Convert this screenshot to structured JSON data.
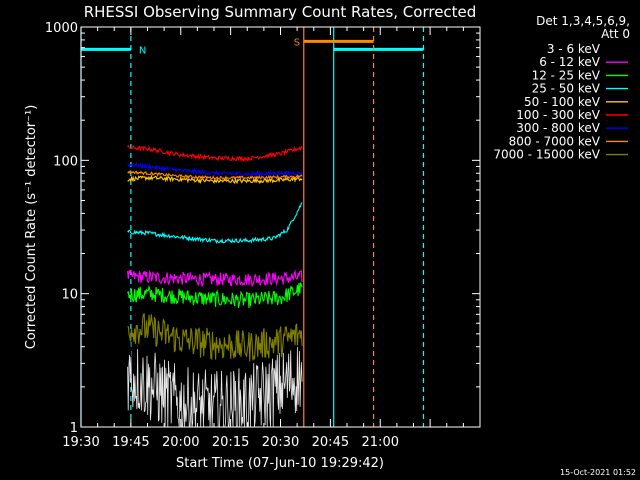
{
  "chart_data": {
    "type": "line",
    "title": "RHESSI Observing Summary Count Rates, Corrected",
    "xlabel": "Start Time (07-Jun-10 19:29:42)",
    "ylabel": "Corrected Count Rate (s⁻¹ detector⁻¹)",
    "footer": "15-Oct-2021 01:52",
    "x_unit": "minutes after 19:30 UT, 07-Jun-10",
    "xlim": [
      0,
      120
    ],
    "ylim": [
      1,
      1000
    ],
    "yscale": "log",
    "x_ticks": [
      {
        "v": 0,
        "label": "19:30"
      },
      {
        "v": 15,
        "label": "19:45"
      },
      {
        "v": 30,
        "label": "20:00"
      },
      {
        "v": 45,
        "label": "20:15"
      },
      {
        "v": 60,
        "label": "20:30"
      },
      {
        "v": 75,
        "label": "20:45"
      },
      {
        "v": 90,
        "label": "21:00"
      },
      {
        "v": 105,
        "label": ""
      }
    ],
    "y_ticks": [
      {
        "v": 1,
        "label": "1"
      },
      {
        "v": 10,
        "label": "10"
      },
      {
        "v": 100,
        "label": "100"
      },
      {
        "v": 1000,
        "label": "1000"
      }
    ],
    "legend_header": [
      "Det 1,3,4,5,6,9,",
      "Att 0"
    ],
    "legend_position": "top-right",
    "series": [
      {
        "name": "3 - 6 keV",
        "color": "#000000",
        "x": [
          14,
          20,
          30,
          40,
          50,
          60,
          66.5
        ],
        "y": [
          2.5,
          2.1,
          1.5,
          1.4,
          1.5,
          2.0,
          2.5
        ],
        "noise": 0.28
      },
      {
        "name": "6 - 12 keV",
        "color": "#ff00ff",
        "x": [
          14,
          20,
          30,
          40,
          50,
          60,
          66.5
        ],
        "y": [
          13.5,
          13.3,
          13.0,
          12.8,
          12.8,
          13.0,
          13.3
        ],
        "noise": 0.05
      },
      {
        "name": "12 - 25 keV",
        "color": "#00ff00",
        "x": [
          14,
          20,
          30,
          40,
          50,
          60,
          66.5
        ],
        "y": [
          9.8,
          10.0,
          9.5,
          9.1,
          8.9,
          9.3,
          11.0
        ],
        "noise": 0.06
      },
      {
        "name": "25 - 50 keV",
        "color": "#00ffff",
        "x": [
          14,
          20,
          30,
          40,
          50,
          58,
          62,
          66.5
        ],
        "y": [
          29,
          28.5,
          26.5,
          25,
          25,
          26,
          30,
          48
        ],
        "noise": 0.015
      },
      {
        "name": "50 - 100 keV",
        "color": "#ffcc00",
        "x": [
          14,
          20,
          30,
          40,
          50,
          60,
          66.5
        ],
        "y": [
          72,
          74,
          72,
          70,
          70,
          71,
          73
        ],
        "noise": 0.015
      },
      {
        "name": "100 - 300 keV",
        "color": "#ff0000",
        "x": [
          14,
          20,
          30,
          40,
          50,
          60,
          66.5
        ],
        "y": [
          125,
          122,
          110,
          104,
          103,
          112,
          125
        ],
        "noise": 0.015
      },
      {
        "name": "300 - 800 keV",
        "color": "#0000ff",
        "x": [
          14,
          20,
          30,
          40,
          50,
          60,
          66.5
        ],
        "y": [
          93,
          90,
          84,
          80,
          79,
          80,
          80
        ],
        "noise": 0.015
      },
      {
        "name": "800 - 7000 keV",
        "color": "#ff8800",
        "x": [
          14,
          20,
          30,
          40,
          50,
          60,
          66.5
        ],
        "y": [
          82,
          80,
          76,
          74,
          74,
          75,
          76
        ],
        "noise": 0.01
      },
      {
        "name": "7000 - 15000 keV",
        "color": "#808000",
        "x": [
          14,
          20,
          30,
          40,
          50,
          60,
          66.5
        ],
        "y": [
          5.5,
          5.5,
          4.5,
          4.2,
          4.0,
          4.4,
          5.0
        ],
        "noise": 0.12
      }
    ],
    "annotations": [
      {
        "kind": "night",
        "label": "N",
        "color": "#00ffff",
        "solid_x": [
          0,
          76
        ],
        "dashed_x": [
          15,
          103
        ],
        "bar_segments": [
          [
            0,
            15
          ],
          [
            76,
            103
          ]
        ],
        "bar_y": 680
      },
      {
        "kind": "saa",
        "label": "S",
        "color": "#ff8800",
        "solid_x": [
          67
        ],
        "dashed_x": [
          88
        ],
        "bar_segments": [
          [
            67,
            88
          ]
        ],
        "bar_y": 780
      }
    ]
  }
}
